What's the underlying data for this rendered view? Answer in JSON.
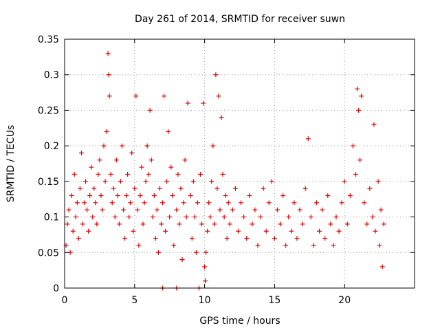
{
  "chart_data": {
    "type": "scatter",
    "title": "Day 261 of 2014, SRMTID for receiver suwn",
    "xlabel": "GPS time / hours",
    "ylabel": "SRMTID / TECUs",
    "xlim": [
      0,
      25
    ],
    "ylim": [
      0,
      0.35
    ],
    "x_ticks": [
      0,
      5,
      10,
      15,
      20
    ],
    "x_tick_labels": [
      "0",
      "5",
      "10",
      "15",
      "20"
    ],
    "y_ticks": [
      0,
      0.05,
      0.1,
      0.15,
      0.2,
      0.25,
      0.3,
      0.35
    ],
    "y_tick_labels": [
      "0",
      "0.05",
      "0.1",
      "0.15",
      "0.2",
      "0.25",
      "0.3",
      "0.35"
    ],
    "grid": true,
    "marker": "plus",
    "colors": {
      "series": "#e00000",
      "grid": "#a0a0a0",
      "axis": "#000000"
    },
    "series": [
      {
        "name": "SRMTID",
        "points": [
          [
            0.1,
            0.06
          ],
          [
            0.2,
            0.09
          ],
          [
            0.3,
            0.11
          ],
          [
            0.4,
            0.05
          ],
          [
            0.5,
            0.13
          ],
          [
            0.6,
            0.08
          ],
          [
            0.7,
            0.16
          ],
          [
            0.8,
            0.1
          ],
          [
            0.9,
            0.12
          ],
          [
            1.0,
            0.07
          ],
          [
            1.1,
            0.14
          ],
          [
            1.2,
            0.19
          ],
          [
            1.3,
            0.09
          ],
          [
            1.4,
            0.12
          ],
          [
            1.5,
            0.15
          ],
          [
            1.6,
            0.11
          ],
          [
            1.7,
            0.08
          ],
          [
            1.8,
            0.13
          ],
          [
            1.9,
            0.17
          ],
          [
            2.0,
            0.1
          ],
          [
            2.1,
            0.14
          ],
          [
            2.2,
            0.12
          ],
          [
            2.3,
            0.09
          ],
          [
            2.4,
            0.16
          ],
          [
            2.5,
            0.18
          ],
          [
            2.6,
            0.13
          ],
          [
            2.7,
            0.11
          ],
          [
            2.8,
            0.2
          ],
          [
            2.9,
            0.15
          ],
          [
            3.0,
            0.22
          ],
          [
            3.1,
            0.33
          ],
          [
            3.15,
            0.3
          ],
          [
            3.2,
            0.27
          ],
          [
            3.3,
            0.16
          ],
          [
            3.4,
            0.12
          ],
          [
            3.5,
            0.14
          ],
          [
            3.6,
            0.1
          ],
          [
            3.7,
            0.18
          ],
          [
            3.8,
            0.13
          ],
          [
            3.9,
            0.09
          ],
          [
            4.0,
            0.15
          ],
          [
            4.1,
            0.2
          ],
          [
            4.2,
            0.11
          ],
          [
            4.3,
            0.07
          ],
          [
            4.4,
            0.13
          ],
          [
            4.5,
            0.16
          ],
          [
            4.6,
            0.1
          ],
          [
            4.7,
            0.12
          ],
          [
            4.8,
            0.19
          ],
          [
            4.9,
            0.08
          ],
          [
            5.0,
            0.14
          ],
          [
            5.1,
            0.27
          ],
          [
            5.2,
            0.11
          ],
          [
            5.3,
            0.06
          ],
          [
            5.4,
            0.13
          ],
          [
            5.5,
            0.17
          ],
          [
            5.6,
            0.09
          ],
          [
            5.7,
            0.12
          ],
          [
            5.8,
            0.15
          ],
          [
            5.9,
            0.2
          ],
          [
            6.0,
            0.16
          ],
          [
            6.1,
            0.25
          ],
          [
            6.2,
            0.18
          ],
          [
            6.3,
            0.1
          ],
          [
            6.4,
            0.13
          ],
          [
            6.5,
            0.07
          ],
          [
            6.6,
            0.11
          ],
          [
            6.7,
            0.05
          ],
          [
            6.8,
            0.14
          ],
          [
            6.9,
            0.09
          ],
          [
            7.0,
            0.12
          ],
          [
            7.0,
            0.0
          ],
          [
            7.1,
            0.27
          ],
          [
            7.2,
            0.08
          ],
          [
            7.3,
            0.15
          ],
          [
            7.4,
            0.22
          ],
          [
            7.5,
            0.1
          ],
          [
            7.6,
            0.17
          ],
          [
            7.7,
            0.13
          ],
          [
            7.8,
            0.06
          ],
          [
            8.0,
            0.11
          ],
          [
            8.0,
            0.0
          ],
          [
            8.1,
            0.16
          ],
          [
            8.2,
            0.09
          ],
          [
            8.3,
            0.14
          ],
          [
            8.4,
            0.04
          ],
          [
            8.5,
            0.12
          ],
          [
            8.6,
            0.18
          ],
          [
            8.7,
            0.1
          ],
          [
            8.8,
            0.26
          ],
          [
            9.0,
            0.13
          ],
          [
            9.1,
            0.07
          ],
          [
            9.2,
            0.15
          ],
          [
            9.3,
            0.1
          ],
          [
            9.4,
            0.05
          ],
          [
            9.5,
            0.12
          ],
          [
            9.6,
            0.0
          ],
          [
            9.7,
            0.16
          ],
          [
            9.8,
            0.09
          ],
          [
            9.9,
            0.26
          ],
          [
            10.0,
            0.03
          ],
          [
            10.05,
            0.01
          ],
          [
            10.1,
            0.05
          ],
          [
            10.2,
            0.08
          ],
          [
            10.3,
            0.12
          ],
          [
            10.4,
            0.1
          ],
          [
            10.5,
            0.15
          ],
          [
            10.6,
            0.2
          ],
          [
            10.7,
            0.09
          ],
          [
            10.8,
            0.3
          ],
          [
            10.9,
            0.14
          ],
          [
            11.0,
            0.27
          ],
          [
            11.1,
            0.11
          ],
          [
            11.2,
            0.24
          ],
          [
            11.3,
            0.16
          ],
          [
            11.4,
            0.1
          ],
          [
            11.5,
            0.13
          ],
          [
            11.6,
            0.07
          ],
          [
            11.7,
            0.12
          ],
          [
            11.8,
            0.09
          ],
          [
            12.0,
            0.11
          ],
          [
            12.2,
            0.14
          ],
          [
            12.4,
            0.08
          ],
          [
            12.6,
            0.12
          ],
          [
            12.8,
            0.1
          ],
          [
            13.0,
            0.07
          ],
          [
            13.2,
            0.13
          ],
          [
            13.4,
            0.09
          ],
          [
            13.6,
            0.11
          ],
          [
            13.8,
            0.06
          ],
          [
            14.0,
            0.1
          ],
          [
            14.2,
            0.14
          ],
          [
            14.4,
            0.08
          ],
          [
            14.6,
            0.12
          ],
          [
            14.8,
            0.15
          ],
          [
            15.0,
            0.07
          ],
          [
            15.2,
            0.11
          ],
          [
            15.4,
            0.09
          ],
          [
            15.6,
            0.13
          ],
          [
            15.8,
            0.06
          ],
          [
            16.0,
            0.1
          ],
          [
            16.2,
            0.08
          ],
          [
            16.4,
            0.12
          ],
          [
            16.6,
            0.07
          ],
          [
            16.8,
            0.11
          ],
          [
            17.0,
            0.09
          ],
          [
            17.2,
            0.14
          ],
          [
            17.4,
            0.21
          ],
          [
            17.6,
            0.1
          ],
          [
            17.8,
            0.06
          ],
          [
            18.0,
            0.12
          ],
          [
            18.2,
            0.08
          ],
          [
            18.4,
            0.11
          ],
          [
            18.6,
            0.07
          ],
          [
            18.8,
            0.13
          ],
          [
            19.0,
            0.09
          ],
          [
            19.2,
            0.06
          ],
          [
            19.4,
            0.1
          ],
          [
            19.6,
            0.08
          ],
          [
            19.8,
            0.12
          ],
          [
            20.0,
            0.15
          ],
          [
            20.2,
            0.09
          ],
          [
            20.4,
            0.13
          ],
          [
            20.6,
            0.2
          ],
          [
            20.8,
            0.16
          ],
          [
            20.9,
            0.28
          ],
          [
            21.0,
            0.25
          ],
          [
            21.1,
            0.18
          ],
          [
            21.2,
            0.27
          ],
          [
            21.4,
            0.12
          ],
          [
            21.6,
            0.09
          ],
          [
            21.8,
            0.14
          ],
          [
            22.0,
            0.1
          ],
          [
            22.1,
            0.23
          ],
          [
            22.2,
            0.08
          ],
          [
            22.4,
            0.15
          ],
          [
            22.5,
            0.06
          ],
          [
            22.6,
            0.11
          ],
          [
            22.7,
            0.03
          ],
          [
            22.8,
            0.09
          ]
        ]
      }
    ]
  }
}
